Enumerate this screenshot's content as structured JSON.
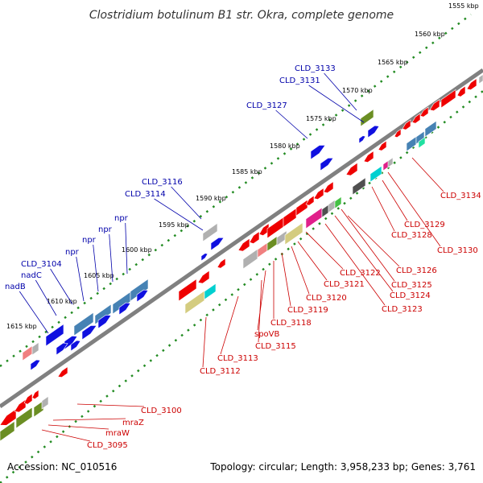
{
  "title": "Clostridium botulinum B1 str. Okra, complete genome",
  "footer": {
    "accession": "Accession: NC_010516",
    "summary": "Topology: circular; Length: 3,958,233 bp; Genes: 3,761"
  },
  "colors": {
    "plus_label": "#0000aa",
    "minus_label": "#cc0000",
    "backbone": "#808080",
    "dots": "#228B22"
  },
  "ticks": [
    "1555 kbp",
    "1560 kbp",
    "1565 kbp",
    "1570 kbp",
    "1575 kbp",
    "1580 kbp",
    "1585 kbp",
    "1590 kbp",
    "1595 kbp",
    "1600 kbp",
    "1605 kbp",
    "1610 kbp",
    "1615 kbp"
  ],
  "plus_labels": [
    "CLD_3133",
    "CLD_3131",
    "CLD_3127",
    "CLD_3116",
    "CLD_3114",
    "npr",
    "npr",
    "npr",
    "npr",
    "CLD_3104",
    "nadC",
    "nadB"
  ],
  "minus_labels": [
    "CLD_3134",
    "CLD_3129",
    "CLD_3128",
    "CLD_3130",
    "CLD_3126",
    "CLD_3122",
    "CLD_3125",
    "CLD_3121",
    "CLD_3124",
    "CLD_3123",
    "CLD_3120",
    "CLD_3119",
    "CLD_3118",
    "spoVB",
    "CLD_3115",
    "CLD_3113",
    "CLD_3112",
    "CLD_3100",
    "mraZ",
    "mraW",
    "CLD_3095"
  ]
}
